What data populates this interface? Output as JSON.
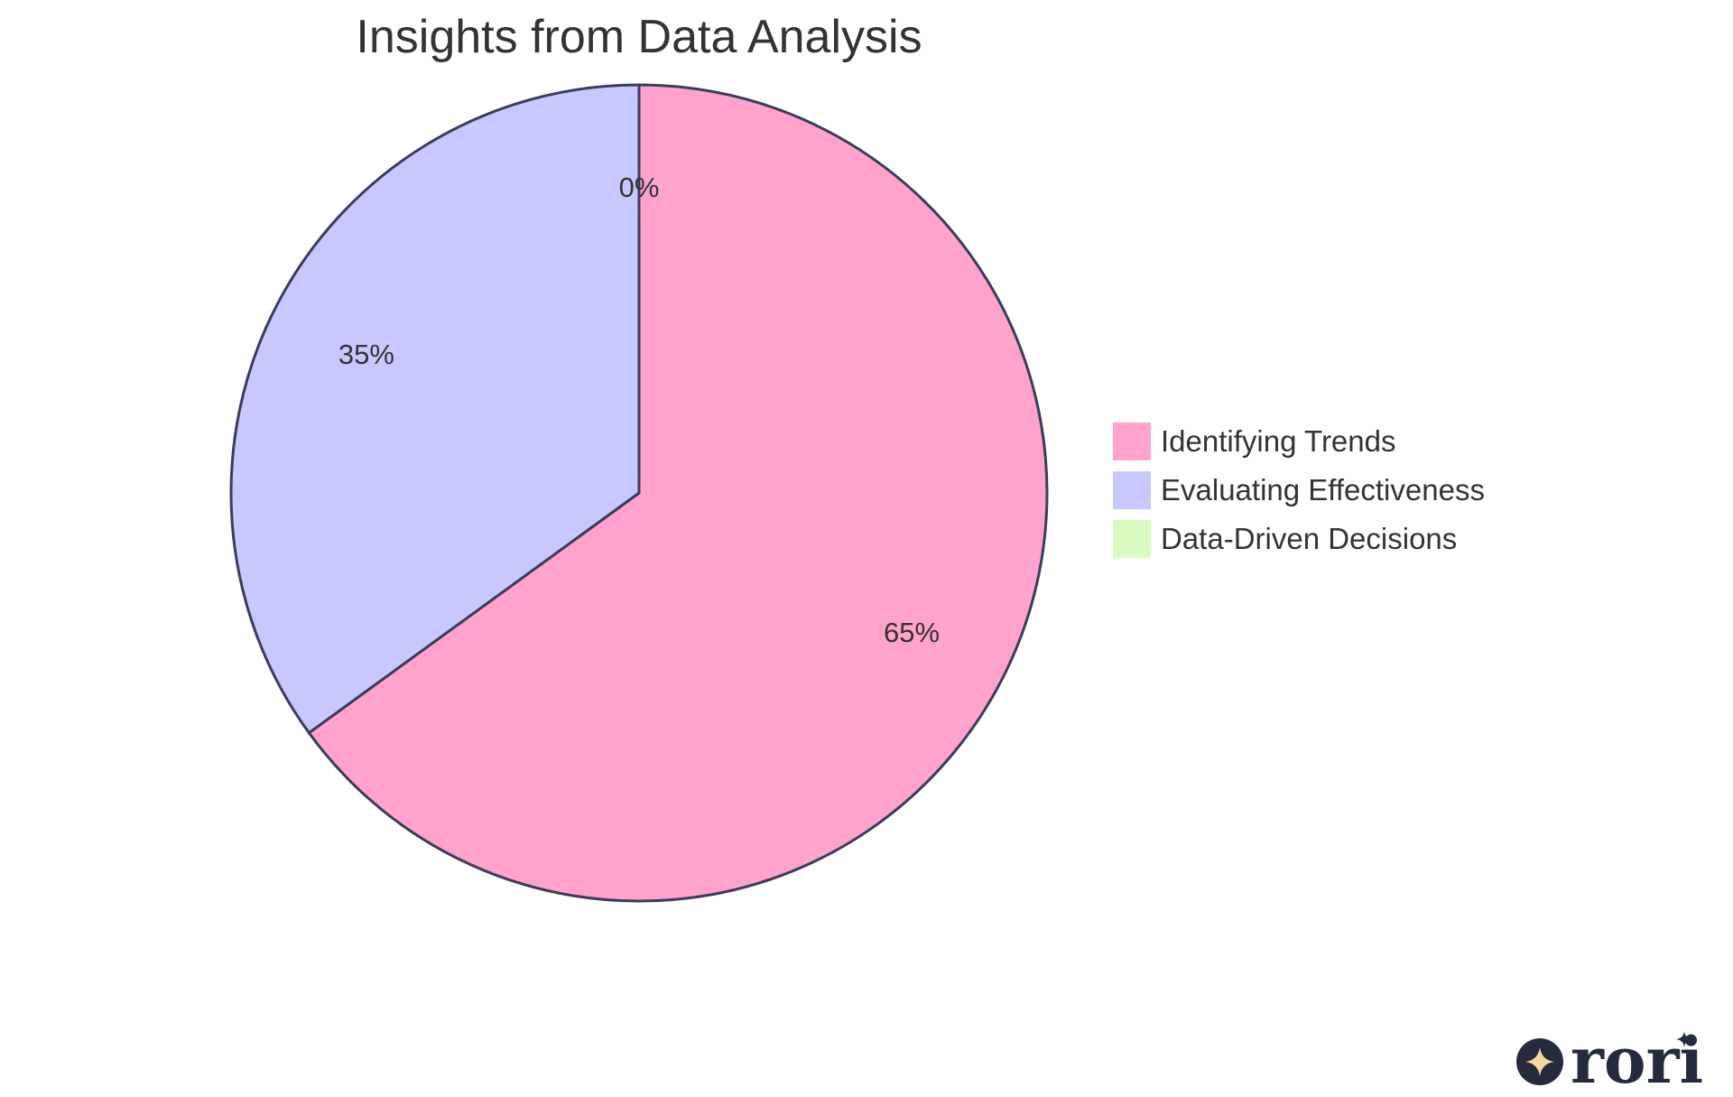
{
  "chart_data": {
    "type": "pie",
    "title": "Insights from Data Analysis",
    "categories": [
      "Identifying Trends",
      "Evaluating Effectiveness",
      "Data-Driven Decisions"
    ],
    "values": [
      65,
      35,
      0
    ],
    "labels": [
      "65%",
      "35%",
      "0%"
    ],
    "colors": [
      "#ffa3cc",
      "#c8c8ff",
      "#d9fac0"
    ],
    "legend": "right"
  },
  "logo": {
    "wordmark": "rori",
    "colors": {
      "dark": "#252a3d",
      "star": "#f3d9a0"
    }
  }
}
